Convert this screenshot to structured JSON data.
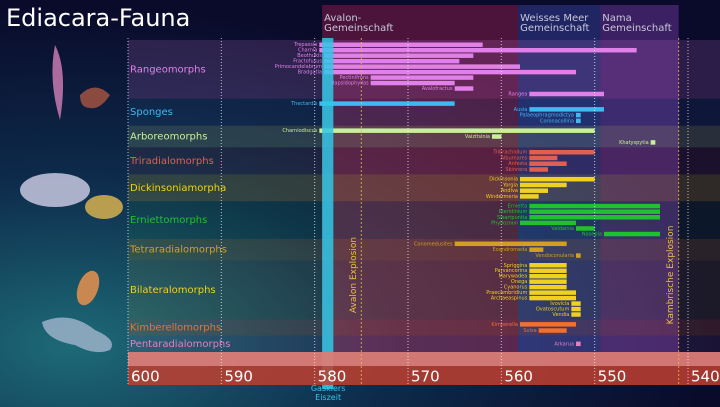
{
  "chart_data": {
    "type": "timeline",
    "title": "Ediacara-Fauna",
    "xlim": [
      600,
      537
    ],
    "xticks": [
      600,
      590,
      580,
      570,
      560,
      550,
      540
    ],
    "grid": true,
    "assemblages": [
      {
        "name": "Avalon-Gemeinschaft",
        "start": 579.2,
        "end": 558.2,
        "color": "#c8285a"
      },
      {
        "name": "Weisses Meer Gemeinschaft",
        "start": 558.2,
        "end": 549.4,
        "color": "#4a5ad0"
      },
      {
        "name": "Nama Gemeinschaft",
        "start": 549.4,
        "end": 541.0,
        "color": "#9a4ad0"
      }
    ],
    "ice_age": {
      "name": "Gaskiers Eiszeit",
      "start": 579.2,
      "end": 578.0,
      "color": "#30c8e8"
    },
    "events": [
      {
        "name": "Avalon Explosion",
        "value": 575,
        "color": "#e8c040"
      },
      {
        "name": "Kambrische Explosion",
        "value": 541,
        "color": "#e8c040"
      }
    ],
    "groups": [
      {
        "name": "Rangeomorphs",
        "color": "#e080e8",
        "bars": [
          {
            "name": "Trepassia",
            "start": 579.5,
            "end": 562.0
          },
          {
            "name": "Charnia",
            "start": 579.5,
            "end": 545.5
          },
          {
            "name": "Beothukis",
            "start": 579.0,
            "end": 563.0
          },
          {
            "name": "Fractofusus",
            "start": 579.0,
            "end": 564.5
          },
          {
            "name": "Primocandelabrum",
            "start": 579.0,
            "end": 558.0
          },
          {
            "name": "Bradgatia",
            "start": 579.0,
            "end": 552.0
          },
          {
            "name": "Pectinifrons",
            "start": 574.0,
            "end": 563.0
          },
          {
            "name": "Hapsidophyllas",
            "start": 574.0,
            "end": 565.0
          },
          {
            "name": "Avalofractus",
            "start": 565.0,
            "end": 563.0
          },
          {
            "name": "Rangea",
            "start": 557.0,
            "end": 549.0
          }
        ]
      },
      {
        "name": "Sponges",
        "color": "#40b8f0",
        "bars": [
          {
            "name": "Thectardis",
            "start": 579.5,
            "end": 565.0
          },
          {
            "name": "Ausia",
            "start": 557.0,
            "end": 549.0
          },
          {
            "name": "Palaeophragmodictya",
            "start": 552.0,
            "end": 551.5
          },
          {
            "name": "Coronacollina",
            "start": 552.0,
            "end": 551.5
          }
        ]
      },
      {
        "name": "Arboreomorphs",
        "color": "#c8f098",
        "bars": [
          {
            "name": "Charniodiscus",
            "start": 579.5,
            "end": 550.0
          },
          {
            "name": "Vaizitsinia",
            "start": 561.0,
            "end": 560.0
          },
          {
            "name": "Khatyspytia",
            "start": 544.0,
            "end": 543.5
          }
        ]
      },
      {
        "name": "Triradialomorphs",
        "color": "#e06050",
        "bars": [
          {
            "name": "Tribrachidium",
            "start": 557.0,
            "end": 550.0
          },
          {
            "name": "Albumares",
            "start": 557.0,
            "end": 554.0
          },
          {
            "name": "Anfesta",
            "start": 557.0,
            "end": 553.0
          },
          {
            "name": "Skinnera",
            "start": 557.0,
            "end": 555.0
          }
        ]
      },
      {
        "name": "Dickinsoniamorpha",
        "color": "#f0d020",
        "bars": [
          {
            "name": "Dickinsonia",
            "start": 558.0,
            "end": 550.0
          },
          {
            "name": "Yorgia",
            "start": 558.0,
            "end": 553.0
          },
          {
            "name": "Andiva",
            "start": 558.0,
            "end": 555.0
          },
          {
            "name": "Windermeria",
            "start": 558.0,
            "end": 556.0
          }
        ]
      },
      {
        "name": "Erniettomorphs",
        "color": "#20c030",
        "bars": [
          {
            "name": "Ernietta",
            "start": 557.0,
            "end": 543.0
          },
          {
            "name": "Pteridinium",
            "start": 557.0,
            "end": 543.0
          },
          {
            "name": "Swartpuntia",
            "start": 557.0,
            "end": 543.0
          },
          {
            "name": "Phyllozoon",
            "start": 558.0,
            "end": 552.0
          },
          {
            "name": "Valdainia",
            "start": 552.0,
            "end": 550.0
          },
          {
            "name": "Nasepia",
            "start": 549.0,
            "end": 543.0
          }
        ]
      },
      {
        "name": "Tetraradialomorphs",
        "color": "#d0a020",
        "bars": [
          {
            "name": "Conomedusites",
            "start": 565.0,
            "end": 553.0
          },
          {
            "name": "Eoandromeda",
            "start": 557.0,
            "end": 555.5
          },
          {
            "name": "Vendoconularia",
            "start": 552.0,
            "end": 551.5
          }
        ]
      },
      {
        "name": "Bilateralomorphs",
        "color": "#f0d020",
        "bars": [
          {
            "name": "Spriggina",
            "start": 557.0,
            "end": 553.0
          },
          {
            "name": "Parvancorina",
            "start": 557.0,
            "end": 553.0
          },
          {
            "name": "Marywadea",
            "start": 557.0,
            "end": 553.0
          },
          {
            "name": "Onega",
            "start": 557.0,
            "end": 553.0
          },
          {
            "name": "Cyanorus",
            "start": 557.0,
            "end": 553.0
          },
          {
            "name": "Praecambridium",
            "start": 557.0,
            "end": 552.0
          },
          {
            "name": "Archaeaspinus",
            "start": 557.0,
            "end": 552.0
          },
          {
            "name": "Ivovicia",
            "start": 552.5,
            "end": 551.5
          },
          {
            "name": "Ovatoscutum",
            "start": 552.5,
            "end": 551.5
          },
          {
            "name": "Vendia",
            "start": 552.5,
            "end": 551.5
          }
        ]
      },
      {
        "name": "Kimberellomorphs",
        "color": "#f07030",
        "bars": [
          {
            "name": "Kimberella",
            "start": 558.0,
            "end": 552.0
          },
          {
            "name": "Solza",
            "start": 556.0,
            "end": 553.0
          }
        ]
      },
      {
        "name": "Pentaradialomorphs",
        "color": "#e080c0",
        "bars": [
          {
            "name": "Arkarua",
            "start": 552.0,
            "end": 551.5
          }
        ]
      }
    ]
  }
}
